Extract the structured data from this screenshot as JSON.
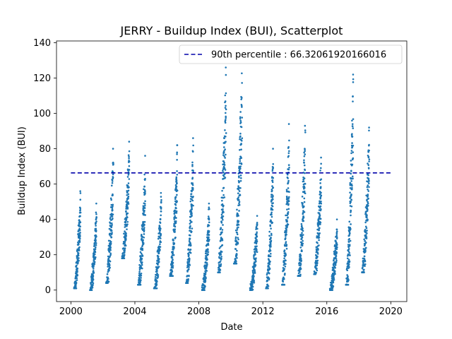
{
  "chart_data": {
    "type": "scatter",
    "title": "JERRY - Buildup Index (BUI), Scatterplot",
    "xlabel": "Date",
    "ylabel": "Buildup Index (BUI)",
    "xlim": [
      1999.1,
      2021.0
    ],
    "ylim": [
      -6.5,
      141
    ],
    "xticks": [
      2000,
      2004,
      2008,
      2012,
      2016,
      2020
    ],
    "yticks": [
      0,
      20,
      40,
      60,
      80,
      100,
      120,
      140
    ],
    "grid": false,
    "legend_placement": "upper right",
    "colors": {
      "points": "#1f77b4",
      "percentile_line": "#0000aa"
    },
    "percentile_line": {
      "label": "90th percentile : 66.32061920166016",
      "value": 66.32061920166016,
      "x_start": 2000.0,
      "x_end": 2020.0
    },
    "seasons": [
      {
        "start": 2000.2,
        "end": 2000.6,
        "min": 1,
        "max": 56
      },
      {
        "start": 2001.2,
        "end": 2001.6,
        "min": 0,
        "max": 49
      },
      {
        "start": 2002.2,
        "end": 2002.65,
        "min": 4,
        "max": 80
      },
      {
        "start": 2003.2,
        "end": 2003.65,
        "min": 18,
        "max": 84
      },
      {
        "start": 2004.2,
        "end": 2004.65,
        "min": 3,
        "max": 76
      },
      {
        "start": 2005.2,
        "end": 2005.65,
        "min": 1,
        "max": 55
      },
      {
        "start": 2006.2,
        "end": 2006.65,
        "min": 8,
        "max": 82
      },
      {
        "start": 2007.2,
        "end": 2007.65,
        "min": 4,
        "max": 86
      },
      {
        "start": 2008.2,
        "end": 2008.65,
        "min": 0,
        "max": 49
      },
      {
        "start": 2009.2,
        "end": 2009.7,
        "min": 10,
        "max": 126
      },
      {
        "start": 2010.2,
        "end": 2010.7,
        "min": 15,
        "max": 129
      },
      {
        "start": 2011.2,
        "end": 2011.65,
        "min": 0,
        "max": 42
      },
      {
        "start": 2012.2,
        "end": 2012.65,
        "min": 1,
        "max": 80
      },
      {
        "start": 2013.2,
        "end": 2013.65,
        "min": 3,
        "max": 94
      },
      {
        "start": 2014.2,
        "end": 2014.65,
        "min": 8,
        "max": 93
      },
      {
        "start": 2015.2,
        "end": 2015.65,
        "min": 9,
        "max": 75
      },
      {
        "start": 2016.2,
        "end": 2016.65,
        "min": 0,
        "max": 40
      },
      {
        "start": 2017.2,
        "end": 2017.65,
        "min": 3,
        "max": 122
      },
      {
        "start": 2018.2,
        "end": 2018.65,
        "min": 10,
        "max": 92
      }
    ]
  }
}
